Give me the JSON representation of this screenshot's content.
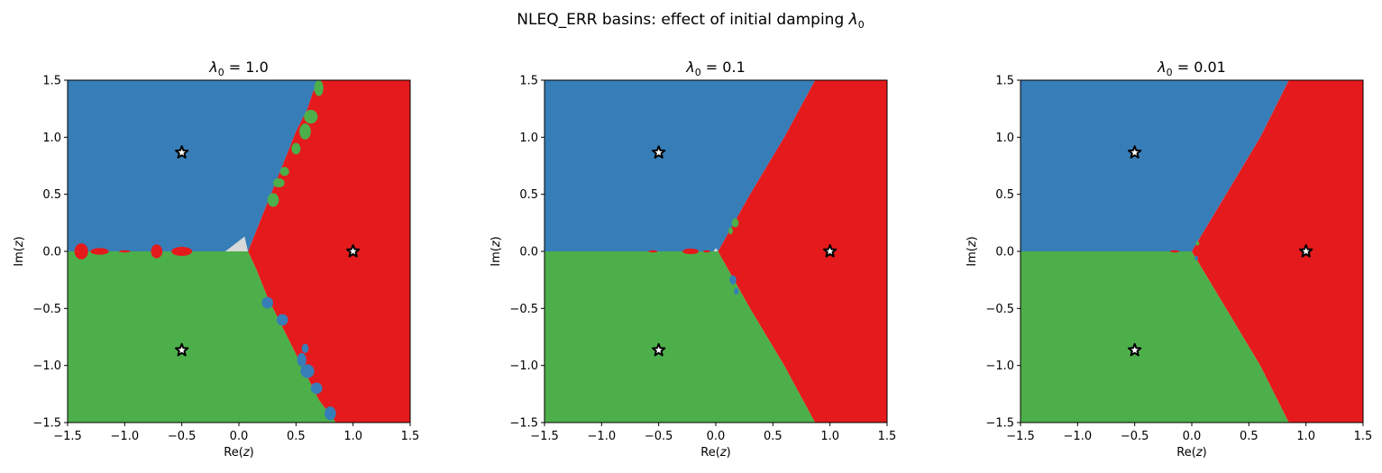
{
  "figure": {
    "title_prefix": "NLEQ_ERR basins: effect of initial damping ",
    "title_symbol": "λ",
    "title_subscript": "0"
  },
  "colors": {
    "root_1": "#e41a1c",
    "root_2": "#377eb8",
    "root_3": "#4daf4a",
    "not_converged": "#d9d9d9",
    "star_fill": "#ffffff",
    "star_edge": "#000000"
  },
  "chart_data": [
    {
      "type": "heatmap",
      "title_symbol": "λ",
      "title_subscript": "0",
      "title_value": " = 1.0",
      "lambda0": 1.0,
      "xlabel_prefix": "Re(",
      "xlabel_var": "z",
      "xlabel_suffix": ")",
      "ylabel_prefix": "Im(",
      "ylabel_var": "z",
      "ylabel_suffix": ")",
      "xlim": [
        -1.5,
        1.5
      ],
      "ylim": [
        -1.5,
        1.5
      ],
      "xticks": [
        "−1.5",
        "−1.0",
        "−0.5",
        "0.0",
        "0.5",
        "1.0",
        "1.5"
      ],
      "yticks": [
        "1.5",
        "1.0",
        "0.5",
        "0.0",
        "−0.5",
        "−1.0",
        "−1.5"
      ],
      "roots": [
        [
          1.0,
          0.0
        ],
        [
          -0.5,
          0.866
        ],
        [
          -0.5,
          -0.866
        ]
      ],
      "boundary_upper": [
        [
          0.08,
          0.0
        ],
        [
          0.12,
          0.1
        ],
        [
          0.2,
          0.3
        ],
        [
          0.3,
          0.55
        ],
        [
          0.4,
          0.8
        ],
        [
          0.5,
          1.05
        ],
        [
          0.6,
          1.25
        ],
        [
          0.65,
          1.4
        ],
        [
          0.72,
          1.5
        ]
      ],
      "boundary_lower": [
        [
          0.08,
          0.0
        ],
        [
          0.15,
          -0.15
        ],
        [
          0.25,
          -0.4
        ],
        [
          0.4,
          -0.7
        ],
        [
          0.55,
          -1.0
        ],
        [
          0.7,
          -1.3
        ],
        [
          0.85,
          -1.5
        ]
      ],
      "blobs_on_axis": [
        [
          -1.38,
          0.0,
          0.06,
          0.07,
          "red"
        ],
        [
          -1.22,
          0.0,
          0.08,
          0.03,
          "red"
        ],
        [
          -0.72,
          0.0,
          0.05,
          0.06,
          "red"
        ],
        [
          -0.5,
          0.0,
          0.09,
          0.04,
          "red"
        ],
        [
          -1.0,
          0.0,
          0.05,
          0.01,
          "red"
        ]
      ],
      "blobs_boundary": [
        [
          0.63,
          1.18,
          0.06,
          0.06,
          "green"
        ],
        [
          0.58,
          1.05,
          0.05,
          0.07,
          "green"
        ],
        [
          0.4,
          0.7,
          0.04,
          0.04,
          "green"
        ],
        [
          0.3,
          0.45,
          0.05,
          0.06,
          "green"
        ],
        [
          0.35,
          0.6,
          0.05,
          0.04,
          "green"
        ],
        [
          0.7,
          1.43,
          0.04,
          0.07,
          "green"
        ],
        [
          0.5,
          0.9,
          0.04,
          0.05,
          "green"
        ],
        [
          0.25,
          -0.45,
          0.05,
          0.05,
          "blue"
        ],
        [
          0.38,
          -0.6,
          0.05,
          0.05,
          "blue"
        ],
        [
          0.55,
          -0.95,
          0.04,
          0.06,
          "blue"
        ],
        [
          0.6,
          -1.05,
          0.06,
          0.06,
          "blue"
        ],
        [
          0.68,
          -1.2,
          0.05,
          0.05,
          "blue"
        ],
        [
          0.8,
          -1.42,
          0.05,
          0.06,
          "blue"
        ],
        [
          0.58,
          -0.85,
          0.03,
          0.04,
          "blue"
        ]
      ],
      "grey_patch": [
        [
          0.0,
          0.0
        ],
        [
          0.08,
          0.0
        ],
        [
          0.05,
          0.13
        ],
        [
          -0.04,
          0.06
        ],
        [
          -0.12,
          0.0
        ]
      ]
    },
    {
      "type": "heatmap",
      "title_symbol": "λ",
      "title_subscript": "0",
      "title_value": " = 0.1",
      "lambda0": 0.1,
      "xlabel_prefix": "Re(",
      "xlabel_var": "z",
      "xlabel_suffix": ")",
      "ylabel_prefix": "Im(",
      "ylabel_var": "z",
      "ylabel_suffix": ")",
      "xlim": [
        -1.5,
        1.5
      ],
      "ylim": [
        -1.5,
        1.5
      ],
      "xticks": [
        "−1.5",
        "−1.0",
        "−0.5",
        "0.0",
        "0.5",
        "1.0",
        "1.5"
      ],
      "yticks": [
        "1.5",
        "1.0",
        "0.5",
        "0.0",
        "−0.5",
        "−1.0",
        "−1.5"
      ],
      "roots": [
        [
          1.0,
          0.0
        ],
        [
          -0.5,
          0.866
        ],
        [
          -0.5,
          -0.866
        ]
      ],
      "boundary_upper": [
        [
          0.02,
          0.0
        ],
        [
          0.3,
          0.5
        ],
        [
          0.6,
          1.0
        ],
        [
          0.87,
          1.5
        ]
      ],
      "boundary_lower": [
        [
          0.02,
          0.0
        ],
        [
          0.3,
          -0.5
        ],
        [
          0.6,
          -1.0
        ],
        [
          0.87,
          -1.5
        ]
      ],
      "blobs_on_axis": [
        [
          -0.22,
          0.0,
          0.07,
          0.025,
          "red"
        ],
        [
          -0.55,
          0.0,
          0.04,
          0.01,
          "red"
        ],
        [
          -0.08,
          0.0,
          0.03,
          0.01,
          "red"
        ]
      ],
      "blobs_boundary": [
        [
          0.17,
          0.25,
          0.03,
          0.04,
          "green"
        ],
        [
          0.13,
          0.18,
          0.02,
          0.03,
          "green"
        ],
        [
          0.15,
          -0.25,
          0.03,
          0.04,
          "blue"
        ],
        [
          0.18,
          -0.35,
          0.02,
          0.03,
          "blue"
        ]
      ],
      "grey_patch": [
        [
          -0.02,
          0.0
        ],
        [
          0.02,
          0.0
        ],
        [
          0.0,
          0.03
        ]
      ]
    },
    {
      "type": "heatmap",
      "title_symbol": "λ",
      "title_subscript": "0",
      "title_value": " = 0.01",
      "lambda0": 0.01,
      "xlabel_prefix": "Re(",
      "xlabel_var": "z",
      "xlabel_suffix": ")",
      "ylabel_prefix": "Im(",
      "ylabel_var": "z",
      "ylabel_suffix": ")",
      "xlim": [
        -1.5,
        1.5
      ],
      "ylim": [
        -1.5,
        1.5
      ],
      "xticks": [
        "−1.5",
        "−1.0",
        "−0.5",
        "0.0",
        "0.5",
        "1.0",
        "1.5"
      ],
      "yticks": [
        "1.5",
        "1.0",
        "0.5",
        "0.0",
        "−0.5",
        "−1.0",
        "−1.5"
      ],
      "roots": [
        [
          1.0,
          0.0
        ],
        [
          -0.5,
          0.866
        ],
        [
          -0.5,
          -0.866
        ]
      ],
      "boundary_upper": [
        [
          0.0,
          0.0
        ],
        [
          0.3,
          0.5
        ],
        [
          0.6,
          1.0
        ],
        [
          0.85,
          1.5
        ]
      ],
      "boundary_lower": [
        [
          0.0,
          0.0
        ],
        [
          0.3,
          -0.5
        ],
        [
          0.6,
          -1.0
        ],
        [
          0.85,
          -1.5
        ]
      ],
      "blobs_on_axis": [
        [
          -0.15,
          0.0,
          0.04,
          0.01,
          "red"
        ]
      ],
      "blobs_boundary": [
        [
          0.05,
          0.07,
          0.015,
          0.02,
          "green"
        ],
        [
          0.04,
          -0.06,
          0.015,
          0.02,
          "blue"
        ]
      ],
      "grey_patch": []
    }
  ]
}
